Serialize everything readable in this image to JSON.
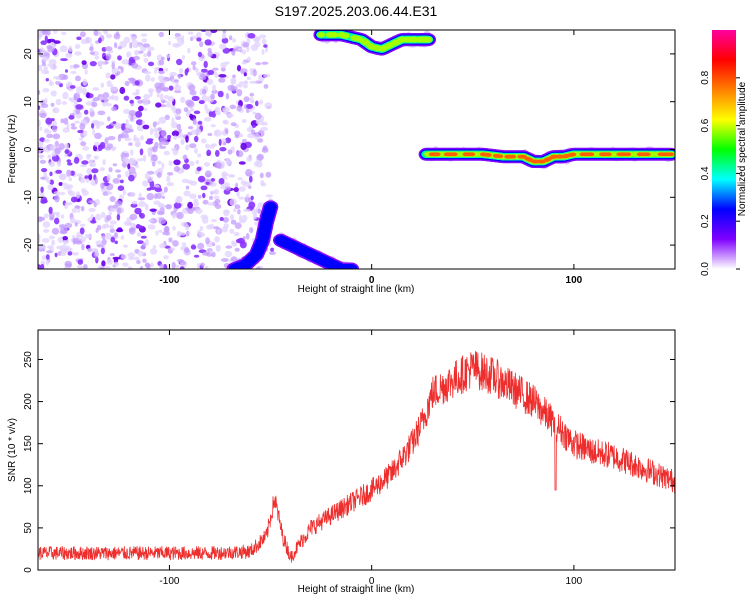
{
  "page_title": "S197.2025.203.06.44.E31",
  "chart_data": [
    {
      "type": "heatmap",
      "xlabel": "Height of straight line (km)",
      "ylabel": "Frequency (Hz)",
      "xlim": [
        -165,
        150
      ],
      "ylim": [
        -25,
        25
      ],
      "xticks": [
        -100,
        0,
        100
      ],
      "yticks": [
        -20,
        -10,
        0,
        10,
        20
      ],
      "colorbar": {
        "label": "Normalized spectral amplitude",
        "range": [
          0,
          1
        ],
        "ticks": [
          0.0,
          0.2,
          0.4,
          0.6,
          0.8
        ],
        "tick_labels": [
          "0.0",
          "0.2",
          "0.4",
          "0.6",
          "0.8"
        ],
        "colormap": [
          "#ffffff",
          "#7f00ff",
          "#0000ff",
          "#00ffff",
          "#00ff00",
          "#ffff00",
          "#ff7f00",
          "#ff0000",
          "#ff00a0"
        ]
      },
      "noise_region": {
        "x_range": [
          -165,
          -48
        ],
        "y_range": [
          -25,
          25
        ],
        "amplitude": 0.1
      },
      "traces": [
        {
          "x": [
            -68,
            -62,
            -57,
            -54,
            -52,
            -50
          ],
          "y": [
            -25,
            -24,
            -22,
            -19,
            -15,
            -12
          ],
          "amplitude": 0.3
        },
        {
          "x": [
            -45,
            -40,
            -35,
            -30,
            -25,
            -20,
            -15,
            -10
          ],
          "y": [
            -19,
            -20,
            -21,
            -22,
            -23,
            -24,
            -25,
            -25
          ],
          "amplitude": 0.35
        },
        {
          "x": [
            -25,
            -15,
            -5,
            0,
            5,
            10,
            15,
            20,
            25,
            28
          ],
          "y": [
            24,
            24,
            23,
            21.5,
            21,
            22,
            23,
            23,
            23,
            23
          ],
          "amplitude": 0.6
        },
        {
          "x": [
            27,
            40,
            55,
            65,
            75,
            80,
            85,
            90,
            95,
            100,
            115,
            130,
            148
          ],
          "y": [
            -1,
            -1,
            -1,
            -1.5,
            -1.5,
            -2.5,
            -2.5,
            -1.5,
            -1.5,
            -1,
            -1,
            -1,
            -1
          ],
          "amplitude": 0.85
        }
      ]
    },
    {
      "type": "line",
      "xlabel": "Height of straight line (km)",
      "ylabel": "SNR (10 * v/v)",
      "xlim": [
        -165,
        150
      ],
      "ylim": [
        0,
        285
      ],
      "xticks": [
        -100,
        0,
        100
      ],
      "yticks": [
        0,
        50,
        100,
        150,
        200,
        250
      ],
      "color": "#ee2d2d",
      "trend": {
        "x": [
          -165,
          -120,
          -80,
          -60,
          -52,
          -48,
          -44,
          -40,
          -36,
          -30,
          -20,
          -10,
          0,
          10,
          20,
          25,
          30,
          40,
          50,
          60,
          70,
          80,
          90,
          100,
          110,
          120,
          130,
          140,
          150
        ],
        "y": [
          20,
          20,
          20,
          22,
          40,
          85,
          40,
          15,
          30,
          50,
          65,
          80,
          95,
          115,
          150,
          175,
          210,
          225,
          240,
          230,
          215,
          200,
          175,
          150,
          140,
          135,
          125,
          115,
          105
        ]
      },
      "noise_amplitude": 14,
      "dips": [
        {
          "x": 91,
          "y": 95
        }
      ]
    }
  ]
}
